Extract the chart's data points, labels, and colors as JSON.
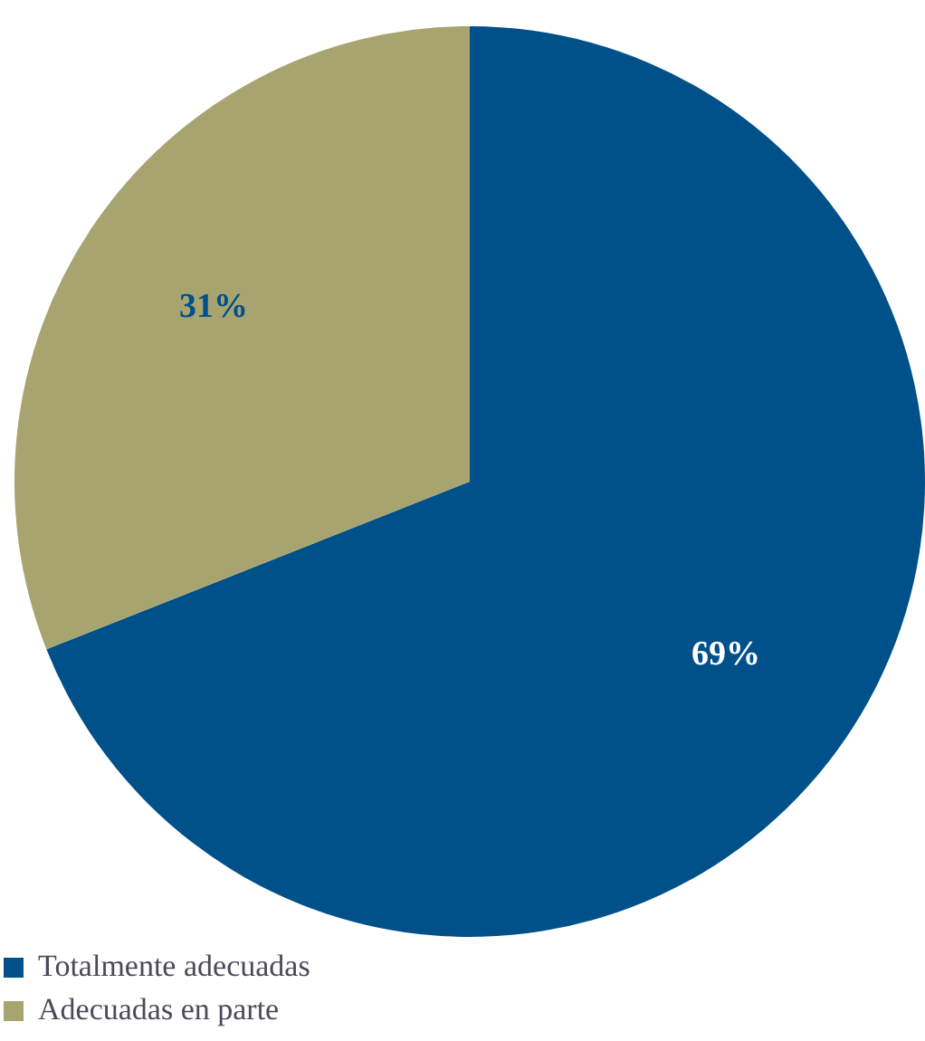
{
  "chart_data": {
    "type": "pie",
    "categories": [
      "Totalmente adecuadas",
      "Adecuadas en parte"
    ],
    "values": [
      69,
      31
    ],
    "colors": [
      "#00508a",
      "#a8a470"
    ],
    "value_labels": [
      "69%",
      "31%"
    ],
    "legend": "bottom left"
  }
}
